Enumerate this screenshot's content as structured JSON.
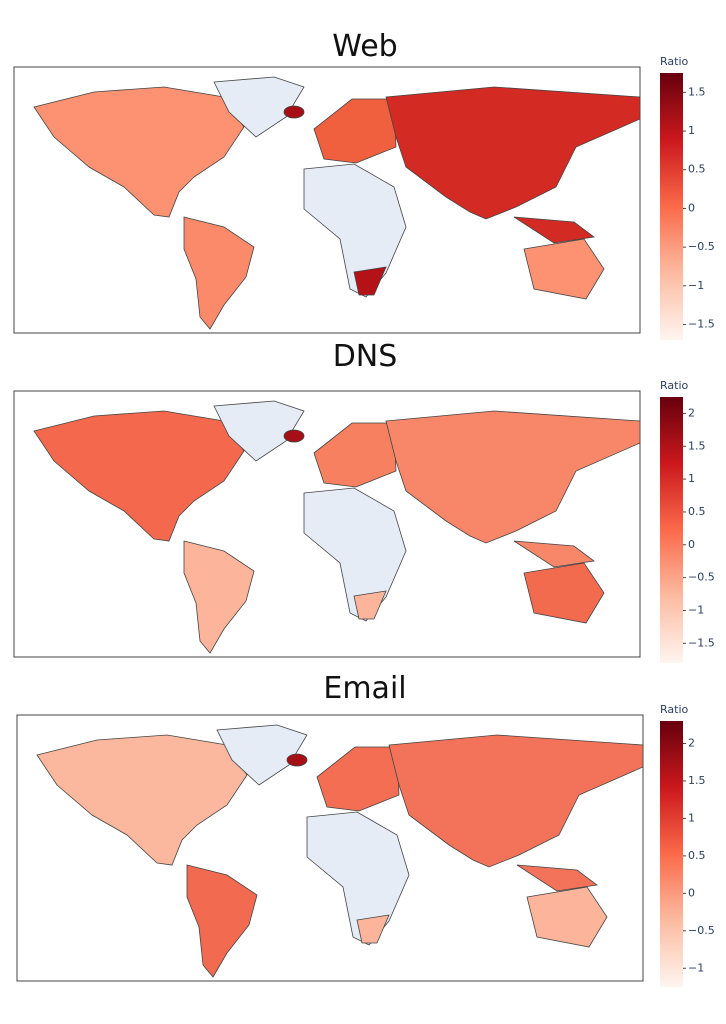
{
  "maps": [
    {
      "title": "Web",
      "colorbar": {
        "title": "Ratio",
        "clim": [
          -1.7,
          1.75
        ],
        "ticks": [
          1.5,
          1,
          0.5,
          0,
          {
            "value": -0.5,
            "label": "−0.5"
          },
          {
            "value": -1,
            "label": "−1"
          },
          {
            "value": -1.5,
            "label": "−1.5"
          }
        ]
      }
    },
    {
      "title": "DNS",
      "colorbar": {
        "title": "Ratio",
        "clim": [
          -1.8,
          2.25
        ],
        "ticks": [
          2,
          1.5,
          1,
          0.5,
          0,
          {
            "value": -0.5,
            "label": "−0.5"
          },
          {
            "value": -1,
            "label": "−1"
          },
          {
            "value": -1.5,
            "label": "−1.5"
          }
        ]
      }
    },
    {
      "title": "Email",
      "colorbar": {
        "title": "Ratio",
        "clim": [
          -1.25,
          2.3
        ],
        "ticks": [
          2,
          1.5,
          1,
          0.5,
          0,
          {
            "value": -0.5,
            "label": "−0.5"
          },
          {
            "value": -1,
            "label": "−1"
          }
        ]
      }
    }
  ]
}
